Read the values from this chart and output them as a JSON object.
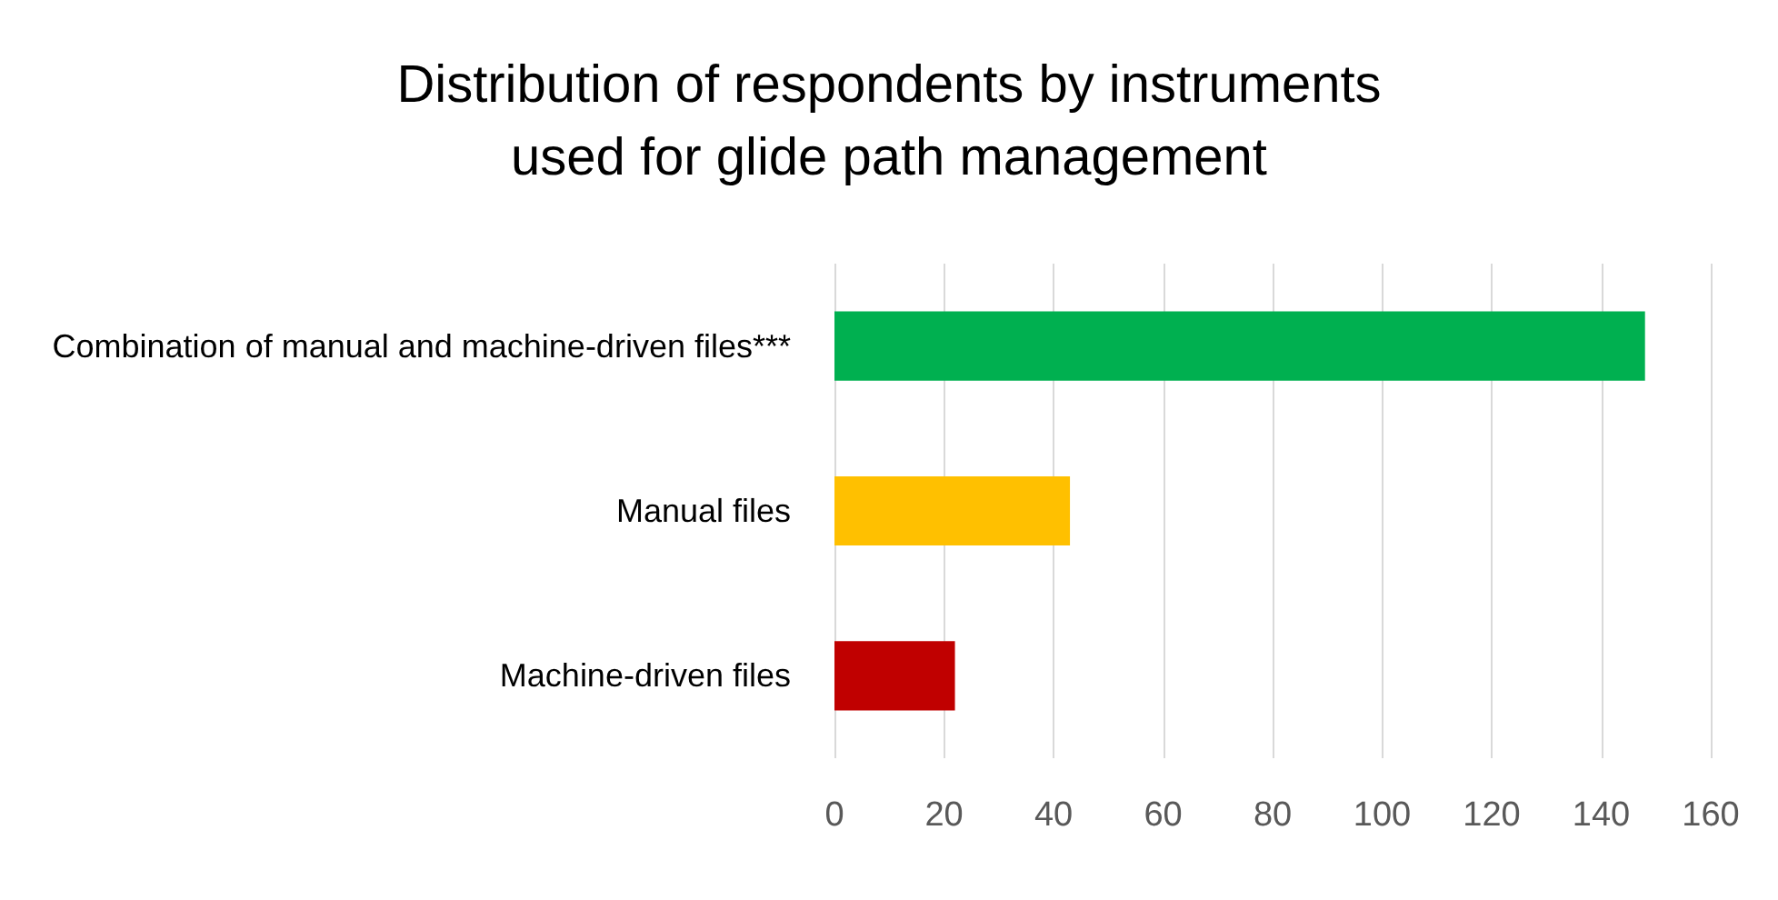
{
  "chart_data": {
    "type": "bar",
    "orientation": "horizontal",
    "title": "Distribution of respondents by instruments\nused for glide path management",
    "categories": [
      "Combination of manual and machine-driven files***",
      "Manual files",
      "Machine-driven files"
    ],
    "values": [
      148,
      43,
      22
    ],
    "colors": [
      "#00b050",
      "#ffc000",
      "#c00000"
    ],
    "xlim": [
      0,
      160
    ],
    "xticks": [
      0,
      20,
      40,
      60,
      80,
      100,
      120,
      140,
      160
    ],
    "grid": "x"
  }
}
